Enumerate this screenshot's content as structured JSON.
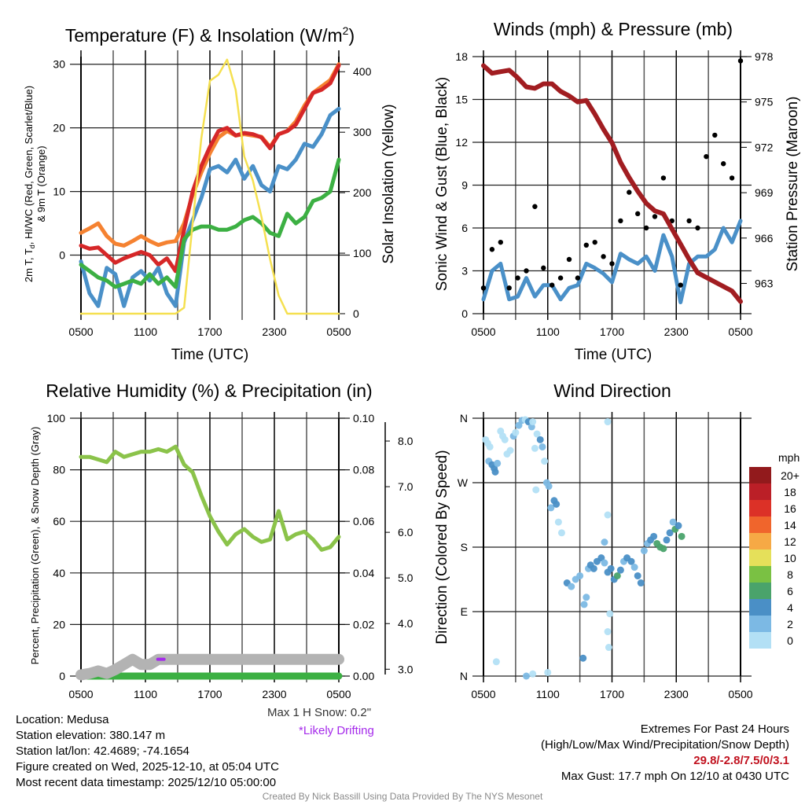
{
  "panels": {
    "temperature": {
      "title": "Temperature (F) & Insolation (W/m²)",
      "left_axis_label_line1": "2m T, Td, HI/WC (Red, Green, Scarlet/Blue)",
      "left_axis_label_line2": "& 9m T (Orange)",
      "right_axis_label": "Solar Insolation (Yellow)",
      "x_axis_label": "Time (UTC)"
    },
    "winds": {
      "title": "Winds (mph) & Pressure (mb)",
      "left_axis_label": "Sonic Wind & Gust (Blue, Black)",
      "right_axis_label": "Station Pressure (Maroon)",
      "x_axis_label": "Time (UTC)"
    },
    "humidity": {
      "title": "Relative Humidity (%) & Precipitation (in)",
      "left_axis_label": "Percent, Precipitation (Green), & Snow Depth (Gray)"
    },
    "wind_direction": {
      "title": "Wind Direction",
      "left_axis_label": "Direction (Colored By Speed)",
      "legend_title": "mph"
    }
  },
  "chart_data": [
    {
      "type": "line",
      "title": "Temperature (F) & Insolation (W/m²)",
      "xlabel": "Time (UTC)",
      "ylabel": "2m T, Td, HI/WC (Red, Green, Scarlet/Blue) & 9m T (Orange)",
      "y2label": "Solar Insolation (Yellow)",
      "x_ticks": [
        "0500",
        "1100",
        "1700",
        "2300",
        "0500"
      ],
      "x_hours": [
        0,
        2,
        4,
        6,
        8,
        10,
        12,
        14,
        16,
        18,
        20,
        22,
        24
      ],
      "ylim": [
        -9.2,
        31.2
      ],
      "y_ticks": [
        0,
        10,
        20,
        30
      ],
      "y2lim": [
        0,
        425
      ],
      "y2_ticks": [
        0,
        100,
        200,
        300,
        400
      ],
      "grid": true,
      "series": [
        {
          "name": "9m T",
          "axis": "left",
          "color": "#f58231",
          "values": [
            3.5,
            4.2,
            5.0,
            3.0,
            1.8,
            1.5,
            2.2,
            3.0,
            2.2,
            1.6,
            2.0,
            2.2,
            5.0,
            9.5,
            13.0,
            16.0,
            18.5,
            19.5,
            18.8,
            19.0,
            18.8,
            18.6,
            17.0,
            19.0,
            19.5,
            21.0,
            23.5,
            25.5,
            26.5,
            27.5,
            30.0
          ]
        },
        {
          "name": "2m T",
          "axis": "left",
          "color": "#d62728",
          "values": [
            1.5,
            1.0,
            1.2,
            0.0,
            -1.2,
            -0.5,
            0.0,
            0.5,
            0.0,
            -1.5,
            -0.5,
            -2.5,
            4.0,
            10.0,
            14.0,
            17.0,
            19.5,
            20.0,
            18.8,
            19.2,
            19.0,
            18.5,
            16.8,
            19.0,
            19.5,
            20.5,
            23.0,
            25.5,
            26.0,
            27.0,
            29.8
          ]
        },
        {
          "name": "HI/WC",
          "axis": "left",
          "color": "#4a90c8",
          "values": [
            -1.0,
            -6.0,
            -8.0,
            -2.0,
            -3.0,
            -8.0,
            -3.5,
            -2.5,
            -4.0,
            -2.0,
            -6.0,
            -8.0,
            2.0,
            5.5,
            9.0,
            13.5,
            14.0,
            13.0,
            15.0,
            12.0,
            14.0,
            11.0,
            10.0,
            14.0,
            13.5,
            15.0,
            17.5,
            17.0,
            19.0,
            22.0,
            23.0
          ]
        },
        {
          "name": "2m Td",
          "axis": "left",
          "color": "#3cb043",
          "values": [
            -1.5,
            -2.5,
            -3.5,
            -4.0,
            -5.0,
            -4.5,
            -4.0,
            -4.5,
            -3.0,
            -4.5,
            -3.5,
            -5.0,
            2.5,
            4.0,
            4.5,
            4.5,
            4.0,
            4.0,
            4.5,
            5.5,
            6.0,
            5.0,
            3.5,
            3.0,
            6.5,
            5.0,
            6.0,
            8.5,
            9.0,
            10.0,
            15.0
          ]
        },
        {
          "name": "Solar Insolation",
          "axis": "right",
          "color": "#f5e050",
          "values": [
            0,
            0,
            0,
            0,
            0,
            0,
            0,
            0,
            0,
            0,
            0,
            0,
            10,
            150,
            290,
            385,
            395,
            420,
            370,
            260,
            220,
            160,
            90,
            30,
            0,
            0,
            0,
            0,
            0,
            0,
            0
          ]
        }
      ]
    },
    {
      "type": "line",
      "title": "Winds (mph) & Pressure (mb)",
      "xlabel": "Time (UTC)",
      "ylabel": "Sonic Wind & Gust (Blue, Black)",
      "y2label": "Station Pressure (Maroon)",
      "x_ticks": [
        "0500",
        "1100",
        "1700",
        "2300",
        "0500"
      ],
      "ylim": [
        0,
        18
      ],
      "y_ticks": [
        0,
        3,
        6,
        9,
        12,
        15,
        18
      ],
      "y2lim": [
        961,
        978
      ],
      "y2_ticks": [
        963,
        966,
        969,
        972,
        975,
        978
      ],
      "grid": true,
      "series": [
        {
          "name": "Sonic Wind",
          "axis": "left",
          "color": "#4a90c8",
          "values": [
            1.0,
            3.0,
            3.5,
            1.0,
            1.2,
            2.5,
            1.2,
            2.0,
            2.0,
            1.0,
            1.8,
            2.0,
            3.5,
            3.2,
            2.8,
            2.2,
            4.2,
            3.8,
            3.5,
            4.0,
            3.0,
            5.5,
            4.0,
            0.8,
            3.5,
            4.0,
            4.0,
            4.5,
            6.0,
            5.0,
            6.5
          ]
        },
        {
          "name": "Gust",
          "axis": "left",
          "color": "#000000",
          "kind": "scatter",
          "values": [
            1.8,
            4.5,
            5.0,
            1.8,
            2.5,
            3.0,
            7.5,
            3.2,
            2.0,
            2.5,
            3.8,
            2.5,
            4.8,
            5.0,
            4.0,
            3.5,
            6.5,
            8.5,
            7.0,
            6.0,
            6.8,
            9.5,
            6.5,
            2.0,
            6.5,
            6.0,
            11.0,
            12.5,
            10.5,
            9.5,
            17.7
          ]
        },
        {
          "name": "Station Pressure",
          "axis": "right",
          "color": "#a11d21",
          "values": [
            977.4,
            976.9,
            977.0,
            977.1,
            976.6,
            976.0,
            975.9,
            976.2,
            976.2,
            975.7,
            975.4,
            975.0,
            975.1,
            974.2,
            973.2,
            972.3,
            971.0,
            970.0,
            969.1,
            968.3,
            967.8,
            967.6,
            966.6,
            965.6,
            964.6,
            963.7,
            963.4,
            963.1,
            962.8,
            962.5,
            961.8
          ]
        }
      ]
    },
    {
      "type": "line",
      "title": "Relative Humidity (%) & Precipitation (in)",
      "xlabel": "",
      "ylabel": "Percent, Precipitation (Green), & Snow Depth (Gray)",
      "x_ticks": [
        "0500",
        "1100",
        "1700",
        "2300",
        "0500"
      ],
      "ylim": [
        0,
        100
      ],
      "y_ticks": [
        0,
        20,
        40,
        60,
        80,
        100
      ],
      "y2lim": [
        0,
        0.1
      ],
      "y2_ticks": [
        "0.00",
        "0.02",
        "0.04",
        "0.06",
        "0.08",
        "0.10"
      ],
      "y3lim": [
        2.85,
        8.5
      ],
      "y3_ticks": [
        "3.0",
        "4.0",
        "5.0",
        "6.0",
        "7.0",
        "8.0"
      ],
      "grid": true,
      "series": [
        {
          "name": "Relative Humidity",
          "axis": "left",
          "color": "#8bc34a",
          "values": [
            85,
            85,
            84,
            83,
            87,
            85,
            86,
            87,
            87,
            88,
            87,
            89,
            82,
            79,
            70,
            62,
            56,
            51,
            55,
            57,
            54,
            52,
            53,
            64,
            53,
            55,
            56,
            53,
            49,
            50,
            54
          ]
        },
        {
          "name": "Precipitation",
          "axis": "right",
          "color": "#3cb043",
          "values": [
            0,
            0,
            0,
            0,
            0,
            0,
            0,
            0,
            0,
            0,
            0,
            0,
            0,
            0,
            0,
            0,
            0,
            0,
            0,
            0,
            0,
            0,
            0,
            0,
            0,
            0,
            0,
            0,
            0,
            0,
            0
          ]
        },
        {
          "name": "Snow Depth",
          "axis": "left",
          "color": "#b3b3b3",
          "values": [
            0.5,
            1.0,
            2.0,
            1.0,
            2.5,
            4.5,
            6.5,
            4.5,
            4.5,
            6.5,
            6.5,
            6.5,
            6.5,
            6.5,
            6.5,
            6.5,
            6.5,
            6.5,
            6.5,
            6.5,
            6.5,
            6.5,
            6.5,
            6.5,
            6.5,
            6.5,
            6.5,
            6.5,
            6.5,
            6.5,
            6.5
          ]
        }
      ],
      "annotations": [
        {
          "text": "Likely drifting marker",
          "color": "#a52aeb",
          "x_fraction": 0.31,
          "y": 6.5
        }
      ]
    },
    {
      "type": "scatter",
      "title": "Wind Direction",
      "ylabel": "Direction (Colored By Speed)",
      "x_ticks": [
        "0500",
        "1100",
        "1700",
        "2300",
        "0500"
      ],
      "y_ticks": [
        "N",
        "E",
        "S",
        "W",
        "N"
      ],
      "ylim": [
        0,
        360
      ],
      "grid": true,
      "legend": {
        "title": "mph",
        "placement": "right",
        "labels": [
          "0",
          "2",
          "4",
          "6",
          "8",
          "10",
          "12",
          "14",
          "16",
          "18",
          "20+"
        ],
        "colors": [
          "#b3e0f5",
          "#7cb9e4",
          "#4a8fc6",
          "#4aa36b",
          "#7ac143",
          "#e5e05a",
          "#f6a945",
          "#f0652c",
          "#dc3127",
          "#bb1f27",
          "#921a1c"
        ]
      },
      "points": [
        [
          0.2,
          330,
          0
        ],
        [
          0.4,
          325,
          0
        ],
        [
          0.6,
          320,
          0
        ],
        [
          0.5,
          300,
          2
        ],
        [
          0.8,
          295,
          4
        ],
        [
          1.0,
          290,
          4
        ],
        [
          1.1,
          285,
          4
        ],
        [
          1.3,
          297,
          2
        ],
        [
          1.6,
          342,
          0
        ],
        [
          1.8,
          335,
          0
        ],
        [
          2.0,
          330,
          0
        ],
        [
          2.2,
          310,
          0
        ],
        [
          2.5,
          315,
          0
        ],
        [
          2.8,
          335,
          2
        ],
        [
          3.0,
          340,
          0
        ],
        [
          3.3,
          350,
          2
        ],
        [
          3.6,
          357,
          2
        ],
        [
          3.9,
          358,
          0
        ],
        [
          4.2,
          355,
          4
        ],
        [
          4.5,
          348,
          2
        ],
        [
          4.6,
          355,
          0
        ],
        [
          4.8,
          318,
          0
        ],
        [
          4.9,
          260,
          0
        ],
        [
          5.0,
          338,
          0
        ],
        [
          5.3,
          330,
          4
        ],
        [
          5.5,
          320,
          2
        ],
        [
          5.7,
          300,
          0
        ],
        [
          5.9,
          270,
          2
        ],
        [
          6.1,
          265,
          2
        ],
        [
          6.3,
          235,
          2
        ],
        [
          6.6,
          245,
          4
        ],
        [
          6.8,
          240,
          4
        ],
        [
          7.0,
          215,
          0
        ],
        [
          7.3,
          200,
          0
        ],
        [
          1.2,
          20,
          0
        ],
        [
          4.0,
          0,
          2
        ],
        [
          4.6,
          3,
          0
        ],
        [
          6.0,
          5,
          0
        ],
        [
          7.8,
          130,
          4
        ],
        [
          8.2,
          125,
          2
        ],
        [
          8.6,
          135,
          2
        ],
        [
          9.0,
          140,
          2
        ],
        [
          9.4,
          100,
          2
        ],
        [
          9.6,
          110,
          2
        ],
        [
          9.8,
          150,
          2
        ],
        [
          10.0,
          155,
          4
        ],
        [
          10.3,
          150,
          4
        ],
        [
          10.6,
          160,
          4
        ],
        [
          11.0,
          165,
          4
        ],
        [
          11.3,
          158,
          2
        ],
        [
          11.6,
          145,
          4
        ],
        [
          11.9,
          150,
          4
        ],
        [
          12.2,
          135,
          4
        ],
        [
          12.5,
          140,
          6
        ],
        [
          12.8,
          148,
          4
        ],
        [
          13.1,
          160,
          2
        ],
        [
          13.4,
          165,
          4
        ],
        [
          13.8,
          160,
          4
        ],
        [
          14.1,
          152,
          2
        ],
        [
          14.4,
          140,
          4
        ],
        [
          14.7,
          130,
          4
        ],
        [
          15.0,
          175,
          2
        ],
        [
          15.3,
          185,
          2
        ],
        [
          15.6,
          190,
          4
        ],
        [
          15.9,
          195,
          4
        ],
        [
          16.2,
          185,
          6
        ],
        [
          16.5,
          180,
          6
        ],
        [
          16.8,
          178,
          6
        ],
        [
          17.1,
          190,
          4
        ],
        [
          17.4,
          200,
          4
        ],
        [
          17.7,
          215,
          2
        ],
        [
          17.9,
          205,
          6
        ],
        [
          18.2,
          210,
          4
        ],
        [
          18.5,
          195,
          6
        ],
        [
          11.6,
          225,
          0
        ],
        [
          11.3,
          187,
          2
        ],
        [
          11.8,
          87,
          0
        ],
        [
          11.6,
          62,
          0
        ],
        [
          11.7,
          40,
          0
        ],
        [
          11.6,
          355,
          0
        ],
        [
          9.3,
          25,
          4
        ]
      ]
    }
  ],
  "info": {
    "location": "Location: Medusa",
    "elevation": "Station elevation: 380.147 m",
    "latlon": "Station lat/lon: 42.4689; -74.1654",
    "created": "Figure created on Wed, 2025-12-10, at 05:04 UTC",
    "recent": "Most recent data timestamp: 2025/12/10 05:00:00",
    "max_snow": "Max 1 H Snow: 0.2\"",
    "drifting": "*Likely Drifting",
    "extremes_title": "Extremes For Past 24 Hours",
    "extremes_fields": "(High/Low/Max Wind/Precipitation/Snow Depth)",
    "extremes_values": "29.8/-2.8/7.5/0/3.1",
    "max_gust": "Max Gust: 17.7 mph On 12/10 at 0430 UTC",
    "credit": "Created By Nick Bassill Using Data Provided By The NYS Mesonet"
  }
}
